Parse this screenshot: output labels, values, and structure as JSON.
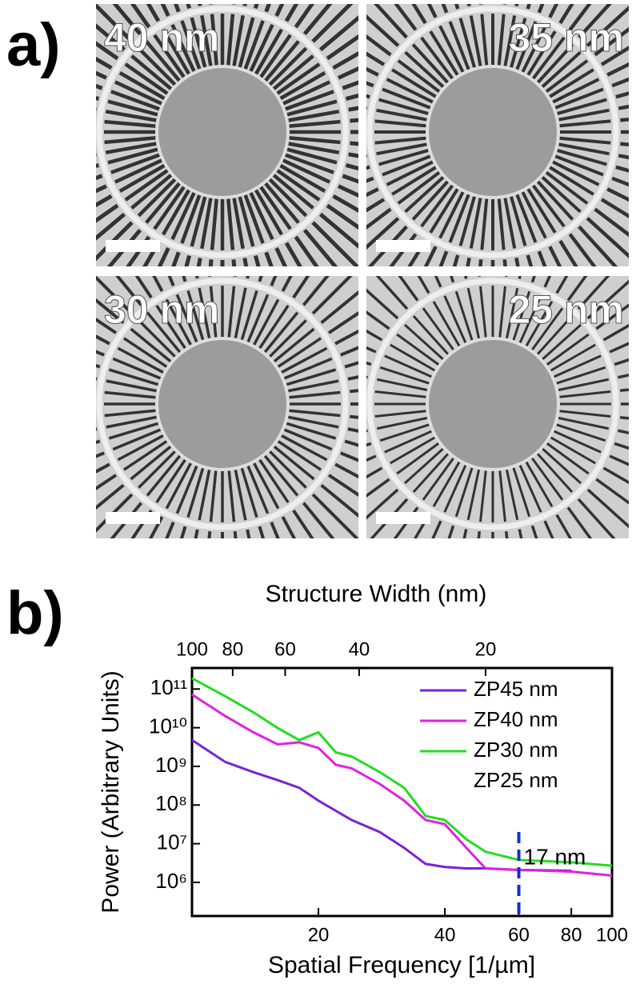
{
  "panel_a_label": "a)",
  "image_labels": [
    "40 nm",
    "35 nm",
    "30 nm",
    "25 nm"
  ],
  "panel_b_label": "b)",
  "chart_data": {
    "type": "line",
    "x_label": "Spatial Frequency [1/µm]",
    "y_label": "Power (Arbitrary Units)",
    "x2_label": "Structure Width (nm)",
    "x_log": true,
    "y_log": true,
    "x2_log": true,
    "xlim": [
      10,
      100
    ],
    "xticks": [
      20,
      40,
      60,
      80,
      100
    ],
    "x2lim": [
      100,
      10
    ],
    "x2ticks": [
      100,
      80,
      60,
      40,
      20
    ],
    "ylim": [
      135000,
      350000000000
    ],
    "yticks": [
      {
        "value": 1000000,
        "label": "10⁶"
      },
      {
        "value": 10000000,
        "label": "10⁷"
      },
      {
        "value": 100000000,
        "label": "10⁸"
      },
      {
        "value": 1000000000,
        "label": "10⁹"
      },
      {
        "value": 10000000000,
        "label": "10¹⁰"
      },
      {
        "value": 100000000000,
        "label": "10¹¹"
      }
    ],
    "legend": "top-right",
    "x": [
      10,
      12,
      14,
      16,
      18,
      20,
      22,
      24,
      28,
      32,
      36,
      40,
      45,
      50,
      60,
      80,
      100
    ],
    "series": [
      {
        "name": "ZP45 nm",
        "color": "#7b22d8",
        "values": [
          4800000000.0,
          1300000000.0,
          710000000.0,
          440000000.0,
          280000000.0,
          130000000.0,
          71000000.0,
          41000000.0,
          20000000.0,
          7800000.0,
          3000000.0,
          2500000.0,
          2300000.0,
          2300000.0,
          2100000.0,
          2000000.0,
          null
        ]
      },
      {
        "name": "ZP40 nm",
        "color": "#e021e0",
        "values": [
          72000000000.0,
          20000000000.0,
          7600000000.0,
          3700000000.0,
          4200000000.0,
          3000000000.0,
          1100000000.0,
          890000000.0,
          350000000.0,
          130000000.0,
          41000000.0,
          32000000.0,
          7800000.0,
          2300000.0,
          2100000.0,
          1900000.0,
          1500000.0
        ]
      },
      {
        "name": "ZP30 nm",
        "color": "#22dd22",
        "values": [
          190000000000.0,
          65000000000.0,
          25000000000.0,
          9800000000.0,
          4800000000.0,
          7600000000.0,
          2300000000.0,
          1800000000.0,
          710000000.0,
          280000000.0,
          52000000.0,
          41000000.0,
          13000000.0,
          6200000.0,
          3800000.0,
          3300000.0,
          2700000.0
        ]
      },
      {
        "name": "ZP25 nm",
        "color": "#ffffff",
        "values": [
          null,
          null,
          null,
          null,
          null,
          null,
          null,
          null,
          null,
          null,
          null,
          null,
          null,
          null,
          null,
          null,
          null
        ]
      }
    ],
    "marker": {
      "x": 60,
      "label": "17 nm",
      "color": "#1030d0"
    }
  }
}
